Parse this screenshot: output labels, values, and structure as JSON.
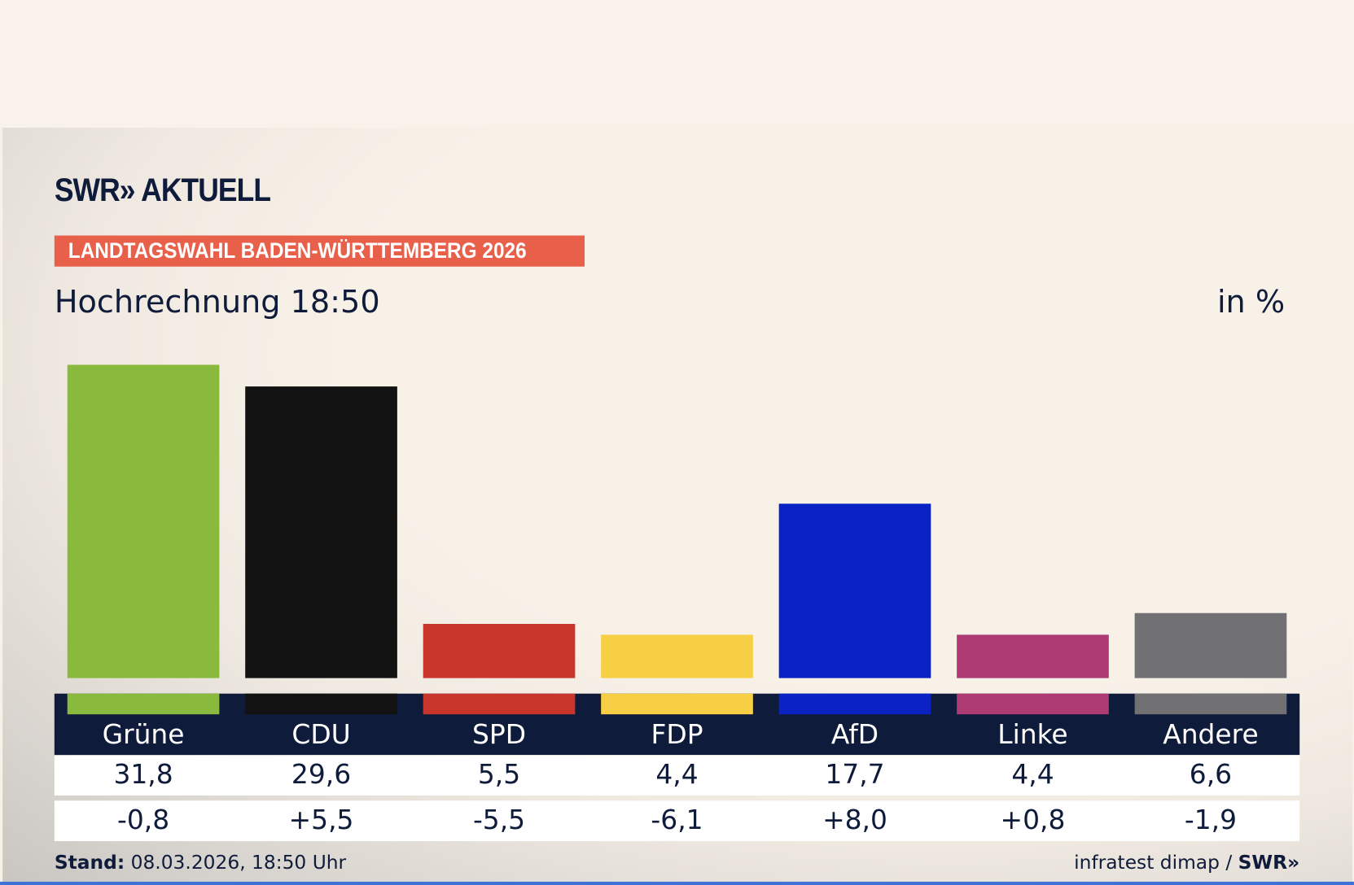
{
  "brand": {
    "logo": "SWR» AKTUELL",
    "footer_logo": "SWR»"
  },
  "banner": "LANDTAGSWAHL BADEN-WÜRTTEMBERG 2026",
  "subtitle": "Hochrechnung 18:50",
  "unit": "in %",
  "footer": {
    "stand_label": "Stand:",
    "stand_value": "08.03.2026, 18:50 Uhr",
    "source": "infratest dimap /"
  },
  "colors": {
    "navy": "#0f1b3a",
    "banner": "#e85f4a",
    "background": "#f8f1e8"
  },
  "chart_data": {
    "type": "bar",
    "title": "Hochrechnung 18:50",
    "ylabel": "in %",
    "categories": [
      "Grüne",
      "CDU",
      "SPD",
      "FDP",
      "AfD",
      "Linke",
      "Andere"
    ],
    "values": [
      31.8,
      29.6,
      5.5,
      4.4,
      17.7,
      4.4,
      6.6
    ],
    "value_labels": [
      "31,8",
      "29,6",
      "5,5",
      "4,4",
      "17,7",
      "4,4",
      "6,6"
    ],
    "change_labels": [
      "-0,8",
      "+5,5",
      "-5,5",
      "-6,1",
      "+8,0",
      "+0,8",
      "-1,9"
    ],
    "changes": [
      -0.8,
      5.5,
      -5.5,
      -6.1,
      8.0,
      0.8,
      -1.9
    ],
    "bar_colors": [
      "#8aba3d",
      "#121212",
      "#c8352b",
      "#f6cf45",
      "#0a22c4",
      "#ad3a72",
      "#717174"
    ],
    "grid": false,
    "legend": "none"
  }
}
